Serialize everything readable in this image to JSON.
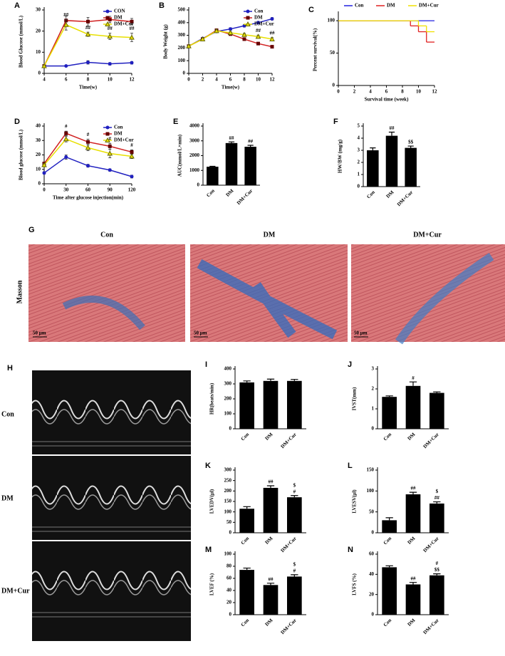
{
  "chart_data": [
    {
      "type": "line",
      "label": "A",
      "xlabel": "Time(w)",
      "ylabel": "Blood Glucose (mmol/L)",
      "x": [
        4,
        6,
        8,
        10,
        12
      ],
      "xlim": [
        4,
        12
      ],
      "xticks": [
        4,
        6,
        8,
        10,
        12
      ],
      "ylim": [
        0,
        30
      ],
      "yticks": [
        0,
        10,
        20,
        30
      ],
      "legend": "upper right",
      "series": [
        {
          "name": "CON",
          "color": "#2020c0",
          "marker": "circle",
          "values": [
            3.5,
            3.5,
            5.2,
            4.5,
            5
          ],
          "errors": [
            0.3,
            0.3,
            0.8,
            0.6,
            0.6
          ]
        },
        {
          "name": "DM",
          "color": "#d02020",
          "marker": "square",
          "values": [
            3.5,
            25,
            24.5,
            25.5,
            24.5
          ],
          "errors": [
            0.3,
            2,
            2,
            1.5,
            1.5
          ]
        },
        {
          "name": "DM+Cur",
          "color": "#e8e000",
          "marker": "triangle",
          "values": [
            3.5,
            23,
            18.5,
            17.5,
            17
          ],
          "errors": [
            0.3,
            2.5,
            1,
            1.5,
            2
          ],
          "annotations": [
            null,
            "##",
            "##",
            "##",
            "##"
          ]
        }
      ]
    },
    {
      "type": "line",
      "label": "B",
      "xlabel": "Time(w)",
      "ylabel": "Body Weight (g)",
      "x": [
        0,
        2,
        4,
        6,
        8,
        10,
        12
      ],
      "xlim": [
        0,
        12
      ],
      "xticks": [
        0,
        2,
        4,
        6,
        8,
        10,
        12
      ],
      "ylim": [
        0,
        500
      ],
      "yticks": [
        0,
        100,
        200,
        300,
        400,
        500
      ],
      "legend": "upper right",
      "series": [
        {
          "name": "Con",
          "color": "#2020c0",
          "marker": "circle",
          "values": [
            215,
            275,
            330,
            350,
            375,
            400,
            430
          ],
          "errors": [
            8,
            8,
            10,
            10,
            10,
            10,
            10
          ]
        },
        {
          "name": "DM",
          "color": "#d02020",
          "marker": "square",
          "values": [
            215,
            270,
            340,
            310,
            270,
            235,
            210
          ],
          "errors": [
            8,
            8,
            10,
            10,
            10,
            10,
            10
          ]
        },
        {
          "name": "DM+Cur",
          "color": "#e8e000",
          "marker": "triangle",
          "values": [
            215,
            270,
            335,
            320,
            305,
            290,
            270
          ],
          "errors": [
            8,
            8,
            10,
            10,
            10,
            12,
            12
          ],
          "annotations": [
            null,
            null,
            null,
            null,
            null,
            "##",
            "##"
          ]
        }
      ]
    },
    {
      "type": "line",
      "label": "C",
      "xlabel": "Survival time (week)",
      "ylabel": "Percent survival(%)",
      "drawstyle": "steps-post",
      "xlim": [
        0,
        12
      ],
      "xticks": [
        0,
        2,
        4,
        6,
        8,
        10,
        12
      ],
      "ylim": [
        0,
        110
      ],
      "yticks": [
        0,
        50,
        100
      ],
      "legend": "top",
      "series": [
        {
          "name": "Con",
          "color": "#2020e0",
          "x": [
            0,
            12
          ],
          "values": [
            100,
            100
          ]
        },
        {
          "name": "DM",
          "color": "#e02020",
          "x": [
            0,
            9,
            10,
            11,
            12
          ],
          "values": [
            100,
            92,
            83,
            67,
            67
          ]
        },
        {
          "name": "DM+Cur",
          "color": "#f0e000",
          "x": [
            0,
            10,
            11,
            12
          ],
          "values": [
            100,
            92,
            83,
            83
          ]
        }
      ]
    },
    {
      "type": "line",
      "label": "D",
      "xlabel": "Time after glucose injection(min)",
      "ylabel": "Blood glucose (mmol/L)",
      "x": [
        0,
        30,
        60,
        90,
        120
      ],
      "xlim": [
        0,
        120
      ],
      "xticks": [
        0,
        30,
        60,
        90,
        120
      ],
      "ylim": [
        0,
        40
      ],
      "yticks": [
        0,
        10,
        20,
        30,
        40
      ],
      "legend": "upper right",
      "series": [
        {
          "name": "Con",
          "color": "#2020c0",
          "marker": "circle",
          "values": [
            7.5,
            18.5,
            12.5,
            9.5,
            5
          ],
          "errors": [
            0.8,
            1.5,
            1,
            0.8,
            1
          ]
        },
        {
          "name": "DM",
          "color": "#d02020",
          "marker": "square",
          "values": [
            14,
            35,
            29,
            26,
            22
          ],
          "errors": [
            1,
            1.5,
            2,
            2,
            1.5
          ],
          "annotations": [
            null,
            "#",
            "#",
            "#",
            "#"
          ]
        },
        {
          "name": "DM+Cur",
          "color": "#e8e000",
          "marker": "triangle",
          "values": [
            13,
            31,
            25,
            21,
            19
          ],
          "errors": [
            1,
            2,
            2,
            3,
            1.5
          ]
        }
      ]
    },
    {
      "type": "bar",
      "label": "E",
      "ylabel": "AUC(mmol/L×min)",
      "categories": [
        "Con",
        "DM",
        "DM+Cur"
      ],
      "values": [
        1250,
        2850,
        2600
      ],
      "errors": [
        30,
        80,
        100
      ],
      "color": "#000000",
      "ylim": [
        0,
        4000
      ],
      "yticks": [
        0,
        1000,
        2000,
        3000,
        4000
      ],
      "annotations": [
        null,
        [
          "##"
        ],
        [
          "##"
        ]
      ]
    },
    {
      "type": "bar",
      "label": "F",
      "ylabel": "HW/BW (mg/g)",
      "categories": [
        "Con",
        "DM",
        "DM+Cur"
      ],
      "values": [
        3.0,
        4.2,
        3.2
      ],
      "errors": [
        0.2,
        0.3,
        0.15
      ],
      "color": "#000000",
      "ylim": [
        0,
        5
      ],
      "yticks": [
        0,
        1,
        2,
        3,
        4,
        5
      ],
      "annotations": [
        null,
        [
          "##"
        ],
        [
          "$$"
        ]
      ]
    },
    {
      "type": "bar",
      "label": "I",
      "ylabel": "HR(beats/min)",
      "categories": [
        "Con",
        "DM",
        "DM+Cur"
      ],
      "values": [
        310,
        320,
        320
      ],
      "errors": [
        10,
        12,
        10
      ],
      "color": "#000000",
      "ylim": [
        0,
        400
      ],
      "yticks": [
        0,
        100,
        200,
        300,
        400
      ]
    },
    {
      "type": "bar",
      "label": "J",
      "ylabel": "IVST(mm)",
      "categories": [
        "Con",
        "DM",
        "DM+Cur"
      ],
      "values": [
        1.6,
        2.15,
        1.8
      ],
      "errors": [
        0.05,
        0.2,
        0.05
      ],
      "color": "#000000",
      "ylim": [
        0,
        3
      ],
      "yticks": [
        0,
        1,
        2,
        3
      ],
      "annotations": [
        null,
        [
          "#"
        ],
        null
      ]
    },
    {
      "type": "bar",
      "label": "K",
      "ylabel": "LVEDV(μl)",
      "categories": [
        "Con",
        "DM",
        "DM+Cur"
      ],
      "values": [
        115,
        215,
        170
      ],
      "errors": [
        10,
        10,
        8
      ],
      "color": "#000000",
      "ylim": [
        0,
        300
      ],
      "yticks": [
        0,
        50,
        100,
        150,
        200,
        250,
        300
      ],
      "annotations": [
        null,
        [
          "##"
        ],
        [
          "$",
          "#"
        ]
      ]
    },
    {
      "type": "bar",
      "label": "L",
      "ylabel": "LVESV(μl)",
      "categories": [
        "Con",
        "DM",
        "DM+Cur"
      ],
      "values": [
        30,
        92,
        70
      ],
      "errors": [
        6,
        5,
        4
      ],
      "color": "#000000",
      "ylim": [
        0,
        150
      ],
      "yticks": [
        0,
        50,
        100,
        150
      ],
      "annotations": [
        null,
        [
          "##"
        ],
        [
          "$",
          "##"
        ]
      ]
    },
    {
      "type": "bar",
      "label": "M",
      "ylabel": "LVEF (%)",
      "categories": [
        "Con",
        "DM",
        "DM+Cur"
      ],
      "values": [
        74,
        49,
        63
      ],
      "errors": [
        3,
        3,
        3
      ],
      "color": "#000000",
      "ylim": [
        0,
        100
      ],
      "yticks": [
        0,
        20,
        40,
        60,
        80,
        100
      ],
      "annotations": [
        null,
        [
          "##"
        ],
        [
          "$",
          "#"
        ]
      ]
    },
    {
      "type": "bar",
      "label": "N",
      "ylabel": "LVFS (%)",
      "categories": [
        "Con",
        "DM",
        "DM+Cur"
      ],
      "values": [
        47,
        30,
        39
      ],
      "errors": [
        1.5,
        2,
        1.5
      ],
      "color": "#000000",
      "ylim": [
        0,
        60
      ],
      "yticks": [
        0,
        20,
        40,
        60
      ],
      "annotations": [
        null,
        [
          "##"
        ],
        [
          "#",
          "$$"
        ]
      ]
    }
  ],
  "histology": {
    "label": "G",
    "row_label": "Masson",
    "columns": [
      "Con",
      "DM",
      "DM+Cur"
    ],
    "scale_bar": "50 μm"
  },
  "echo": {
    "label": "H",
    "rows": [
      "Con",
      "DM",
      "DM+Cur"
    ]
  }
}
